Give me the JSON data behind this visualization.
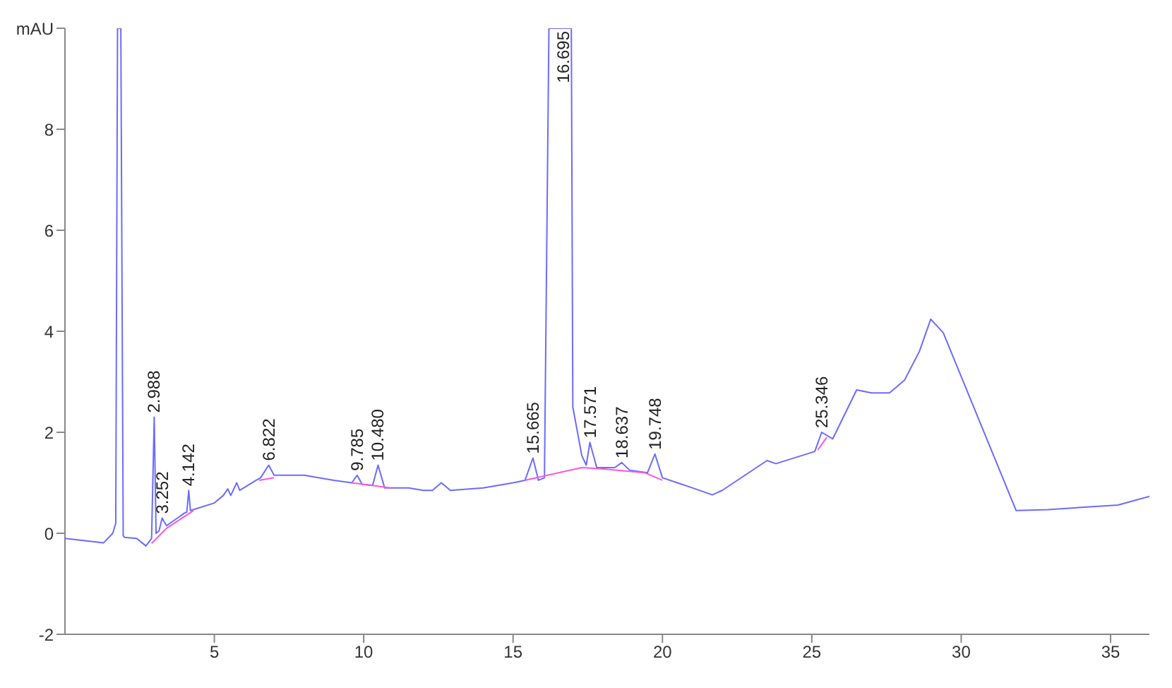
{
  "chart_data": {
    "type": "line",
    "xlim": [
      0,
      36.3
    ],
    "ylim": [
      -2,
      10
    ],
    "xticks": [
      5,
      10,
      15,
      20,
      25,
      30,
      35
    ],
    "yticks": [
      -2,
      0,
      2,
      4,
      6,
      8,
      {
        "value": 10,
        "label": "mAU"
      }
    ],
    "marker": "none",
    "line_style": "solid",
    "series": [
      {
        "color": "#6b6bff",
        "x": [
          0,
          1.29,
          1.6,
          1.7,
          1.76,
          1.87,
          1.95,
          2.0,
          2.4,
          2.71,
          2.9,
          2.988,
          3.05,
          3.15,
          3.252,
          3.4,
          4.0,
          4.08,
          4.142,
          4.2,
          5.0,
          5.3,
          5.45,
          5.55,
          5.75,
          5.85,
          6.4,
          6.55,
          6.82,
          7.0,
          8,
          9,
          9.6,
          9.78,
          9.95,
          10.3,
          10.48,
          10.7,
          11.5,
          12,
          12.3,
          12.6,
          12.9,
          14,
          15,
          15.4,
          15.665,
          15.85,
          16.05,
          16.2,
          16.3,
          16.86,
          16.95,
          17.0,
          17.3,
          17.45,
          17.571,
          17.8,
          18.4,
          18.637,
          18.9,
          19.5,
          19.748,
          20.0,
          20.5,
          21,
          21.67,
          22,
          23.5,
          23.8,
          25.1,
          25.33,
          25.7,
          26.5,
          27.0,
          27.6,
          28.1,
          28.6,
          28.98,
          29.4,
          31.84,
          32.9,
          35.25,
          36.3
        ],
        "values": [
          -0.1,
          -0.19,
          0,
          0.2,
          10,
          10,
          -0.05,
          -0.08,
          -0.1,
          -0.25,
          -0.1,
          2.3,
          0.0,
          0.05,
          0.3,
          0.15,
          0.4,
          0.42,
          0.85,
          0.45,
          0.6,
          0.75,
          0.88,
          0.75,
          1.0,
          0.85,
          1.05,
          1.1,
          1.35,
          1.15,
          1.15,
          1.05,
          1.0,
          1.15,
          0.97,
          0.95,
          1.35,
          0.9,
          0.9,
          0.85,
          0.85,
          1.0,
          0.85,
          0.9,
          1.0,
          1.05,
          1.49,
          1.05,
          1.1,
          10,
          10,
          10,
          10,
          2.5,
          1.54,
          1.35,
          1.8,
          1.3,
          1.3,
          1.4,
          1.25,
          1.2,
          1.57,
          1.1,
          1.0,
          0.9,
          0.76,
          0.85,
          1.44,
          1.38,
          1.62,
          2.0,
          1.87,
          2.84,
          2.78,
          2.78,
          3.03,
          3.6,
          4.24,
          3.97,
          0.45,
          0.47,
          0.56,
          0.73
        ]
      },
      {
        "color": "#ff55dd",
        "x": [
          2.9,
          3.4,
          4.3,
          4.4,
          6.5,
          7.0,
          7.1,
          9.6,
          10.9,
          11.0,
          15.4,
          17.3,
          17.9,
          19.4,
          20.0,
          20.1,
          25.2,
          25.5
        ],
        "values": [
          -0.2,
          0.1,
          0.45,
          null,
          1.05,
          1.1,
          null,
          1.0,
          0.9,
          null,
          1.05,
          1.3,
          1.28,
          1.2,
          1.05,
          null,
          1.65,
          1.9
        ]
      }
    ],
    "annotations": [
      {
        "text": "2.988",
        "x": 2.988,
        "y": 2.3
      },
      {
        "text": "3.252",
        "x": 3.252,
        "y": 0.3
      },
      {
        "text": "4.142",
        "x": 4.142,
        "y": 0.85
      },
      {
        "text": "6.822",
        "x": 6.822,
        "y": 1.35
      },
      {
        "text": "9.785",
        "x": 9.785,
        "y": 1.15
      },
      {
        "text": "10.480",
        "x": 10.48,
        "y": 1.35
      },
      {
        "text": "15.665",
        "x": 15.665,
        "y": 1.49
      },
      {
        "text": "16.695",
        "x": 16.695,
        "y": 10
      },
      {
        "text": "17.571",
        "x": 17.571,
        "y": 1.8
      },
      {
        "text": "18.637",
        "x": 18.637,
        "y": 1.4
      },
      {
        "text": "19.748",
        "x": 19.748,
        "y": 1.57
      },
      {
        "text": "25.346",
        "x": 25.346,
        "y": 2.0
      }
    ]
  }
}
